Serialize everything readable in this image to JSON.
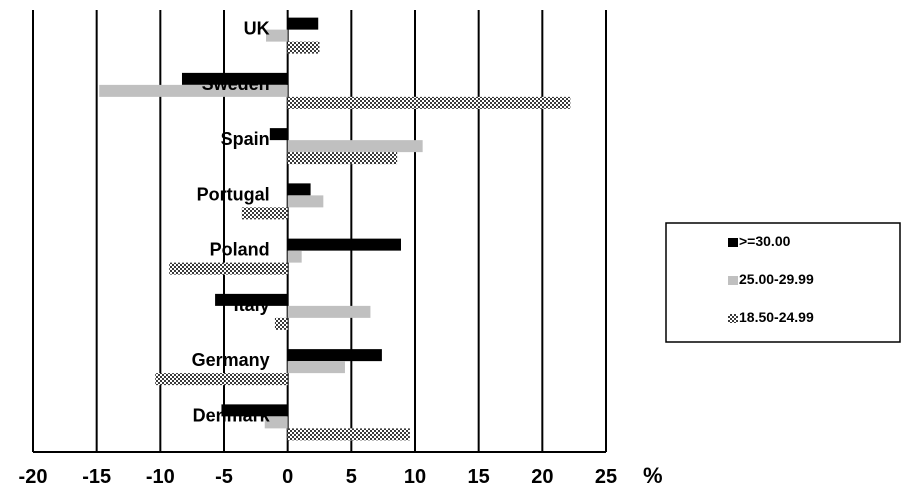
{
  "chart_data": {
    "type": "bar",
    "orientation": "horizontal",
    "categories": [
      "UK",
      "Sweden",
      "Spain",
      "Portugal",
      "Poland",
      "Italy",
      "Germany",
      "Denmark"
    ],
    "series": [
      {
        "name": ">=30.00",
        "color": "#000000",
        "pattern": "solid",
        "values": [
          2.4,
          -8.3,
          -1.4,
          1.8,
          8.9,
          -5.7,
          7.4,
          -5.2
        ]
      },
      {
        "name": "25.00-29.99",
        "color": "#c0c0c0",
        "pattern": "solid",
        "values": [
          -1.7,
          -14.8,
          10.6,
          2.8,
          1.1,
          6.5,
          4.5,
          -1.8
        ]
      },
      {
        "name": "18.50-24.99",
        "color": "#444444",
        "pattern": "checker",
        "values": [
          2.5,
          22.2,
          8.6,
          -3.6,
          -9.3,
          -1.0,
          -10.4,
          9.6
        ]
      }
    ],
    "xlim": [
      -20,
      25
    ],
    "xticks": [
      -20,
      -15,
      -10,
      -5,
      0,
      5,
      10,
      15,
      20,
      25
    ],
    "xticklabels": [
      "-20",
      "-15",
      "-10",
      "-5",
      "0",
      "5",
      "10",
      "15",
      "20",
      "25"
    ],
    "xunit": "%",
    "grid": true,
    "legend": "right"
  }
}
